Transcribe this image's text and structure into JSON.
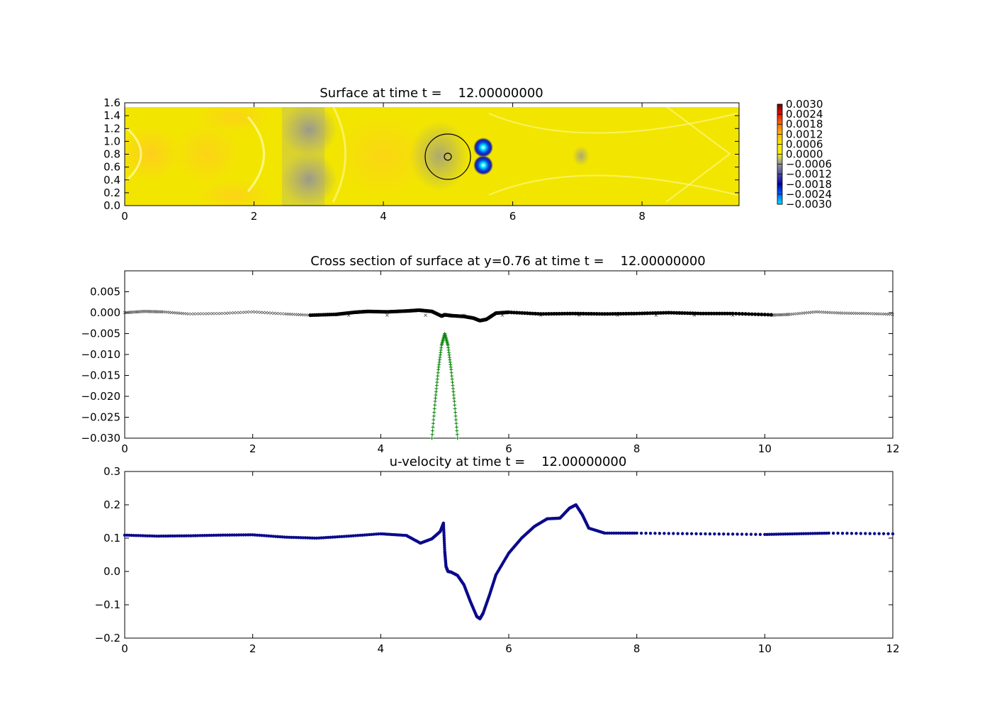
{
  "chart_data": [
    {
      "type": "heatmap",
      "title": "Surface at time t =    12.00000000",
      "xlim": [
        0,
        9.5
      ],
      "ylim": [
        0,
        1.6
      ],
      "xticks": [
        0,
        2,
        4,
        6,
        8
      ],
      "xtick_labels": [
        "0",
        "2",
        "4",
        "6",
        "8"
      ],
      "yticks": [
        0.0,
        0.2,
        0.4,
        0.6,
        0.8,
        1.0,
        1.2,
        1.4,
        1.6
      ],
      "ytick_labels": [
        "0.0",
        "0.2",
        "0.4",
        "0.6",
        "0.8",
        "1.0",
        "1.2",
        "1.4",
        "1.6"
      ],
      "colorbar": {
        "vmin": -0.003,
        "vmax": 0.003,
        "tick_labels": [
          "0.0030",
          "0.0024",
          "0.0018",
          "0.0012",
          "0.0006",
          "0.0000",
          "−0.0006",
          "−0.0012",
          "−0.0018",
          "−0.0024",
          "−0.0030"
        ],
        "colors": [
          "#00e5ff",
          "#0060ff",
          "#0000b0",
          "#5a5aa0",
          "#a0a090",
          "#eeee10",
          "#ffe800",
          "#ffbb00",
          "#ff7000",
          "#ee1000",
          "#660000"
        ]
      },
      "features": {
        "cylinder": {
          "center": [
            5.0,
            0.76
          ],
          "radius": 0.35,
          "inner_radius": 0.05
        },
        "low_spots": [
          [
            5.55,
            0.88
          ],
          [
            5.55,
            0.62
          ]
        ],
        "grey_bands": [
          [
            2.5,
            3.3
          ],
          [
            4.7,
            5.2
          ]
        ],
        "domain_top": 1.55
      }
    },
    {
      "type": "scatter",
      "title": "Cross section of surface at y=0.76 at time t =    12.00000000",
      "xlim": [
        0,
        12
      ],
      "ylim": [
        -0.03,
        0.01
      ],
      "xticks": [
        0,
        2,
        4,
        6,
        8,
        10,
        12
      ],
      "xtick_labels": [
        "0",
        "2",
        "4",
        "6",
        "8",
        "10",
        "12"
      ],
      "yticks": [
        0.005,
        0.0,
        -0.005,
        -0.01,
        -0.015,
        -0.02,
        -0.025,
        -0.03
      ],
      "ytick_labels": [
        "0.005",
        "0.000",
        "−0.005",
        "−0.010",
        "−0.015",
        "−0.020",
        "−0.025",
        "−0.030"
      ],
      "series": [
        {
          "style": "thin-x",
          "color": "#555555",
          "x": [
            0.0,
            0.3,
            0.6,
            1.0,
            1.5,
            2.0,
            2.5,
            2.9,
            10.1,
            10.4,
            10.8,
            11.2,
            11.6,
            12.0
          ],
          "y": [
            0.0,
            0.0003,
            0.0002,
            -0.0003,
            -0.0002,
            0.0002,
            -0.0003,
            -0.0006,
            -0.0006,
            -0.0004,
            0.0002,
            -0.0001,
            -0.0002,
            -0.0004
          ]
        },
        {
          "style": "bold",
          "color": "#000000",
          "x": [
            2.9,
            3.3,
            3.6,
            3.8,
            4.1,
            4.4,
            4.6,
            4.8,
            4.95,
            5.0,
            5.1,
            5.3,
            5.45,
            5.55,
            5.65,
            5.8,
            6.0,
            6.5,
            7.0,
            7.5,
            8.0,
            8.5,
            9.0,
            9.5,
            10.1
          ],
          "y": [
            -0.0006,
            -0.0004,
            0.0001,
            0.0003,
            0.0002,
            0.0004,
            0.0006,
            0.0003,
            -0.0008,
            -0.0005,
            -0.0007,
            -0.0009,
            -0.0013,
            -0.0019,
            -0.0016,
            -0.0001,
            0.0001,
            -0.0003,
            -0.0002,
            -0.0003,
            -0.0002,
            0.0,
            -0.0002,
            -0.0002,
            -0.0005
          ]
        },
        {
          "style": "plus",
          "color": "#008000",
          "x": [
            4.8,
            4.85,
            4.9,
            4.95,
            5.0,
            5.05,
            5.1,
            5.15,
            5.2
          ],
          "y": [
            -0.03,
            -0.0212,
            -0.0136,
            -0.0078,
            -0.005,
            -0.0078,
            -0.0136,
            -0.0212,
            -0.03
          ]
        }
      ]
    },
    {
      "type": "scatter",
      "title": "u-velocity at time t =    12.00000000",
      "xlim": [
        0,
        12
      ],
      "ylim": [
        -0.2,
        0.3
      ],
      "xticks": [
        0,
        2,
        4,
        6,
        8,
        10,
        12
      ],
      "xtick_labels": [
        "0",
        "2",
        "4",
        "6",
        "8",
        "10",
        "12"
      ],
      "yticks": [
        0.3,
        0.2,
        0.1,
        0.0,
        -0.1,
        -0.2
      ],
      "ytick_labels": [
        "0.3",
        "0.2",
        "0.1",
        "0.0",
        "−0.1",
        "−0.2"
      ],
      "series": [
        {
          "style": "dot",
          "color": "#0a0a8c",
          "x": [
            0.0,
            0.5,
            1.0,
            1.5,
            2.0,
            2.5,
            3.0,
            3.5,
            4.0,
            4.4,
            4.62,
            4.8,
            4.93,
            4.98,
            5.0,
            5.02,
            5.05,
            5.1,
            5.2,
            5.3,
            5.4,
            5.5,
            5.55,
            5.6,
            5.7,
            5.8,
            6.0,
            6.2,
            6.4,
            6.6,
            6.8,
            6.95,
            7.05,
            7.15,
            7.25,
            7.5,
            8.0,
            9.0,
            10.0,
            10.5,
            11.0,
            12.0
          ],
          "y": [
            0.109,
            0.106,
            0.107,
            0.109,
            0.11,
            0.103,
            0.1,
            0.106,
            0.113,
            0.108,
            0.085,
            0.098,
            0.12,
            0.145,
            0.06,
            0.015,
            0.0,
            -0.002,
            -0.012,
            -0.04,
            -0.09,
            -0.135,
            -0.142,
            -0.125,
            -0.07,
            -0.01,
            0.055,
            0.1,
            0.135,
            0.158,
            0.16,
            0.19,
            0.2,
            0.17,
            0.13,
            0.115,
            0.115,
            0.113,
            0.111,
            0.113,
            0.115,
            0.113
          ]
        }
      ]
    }
  ]
}
